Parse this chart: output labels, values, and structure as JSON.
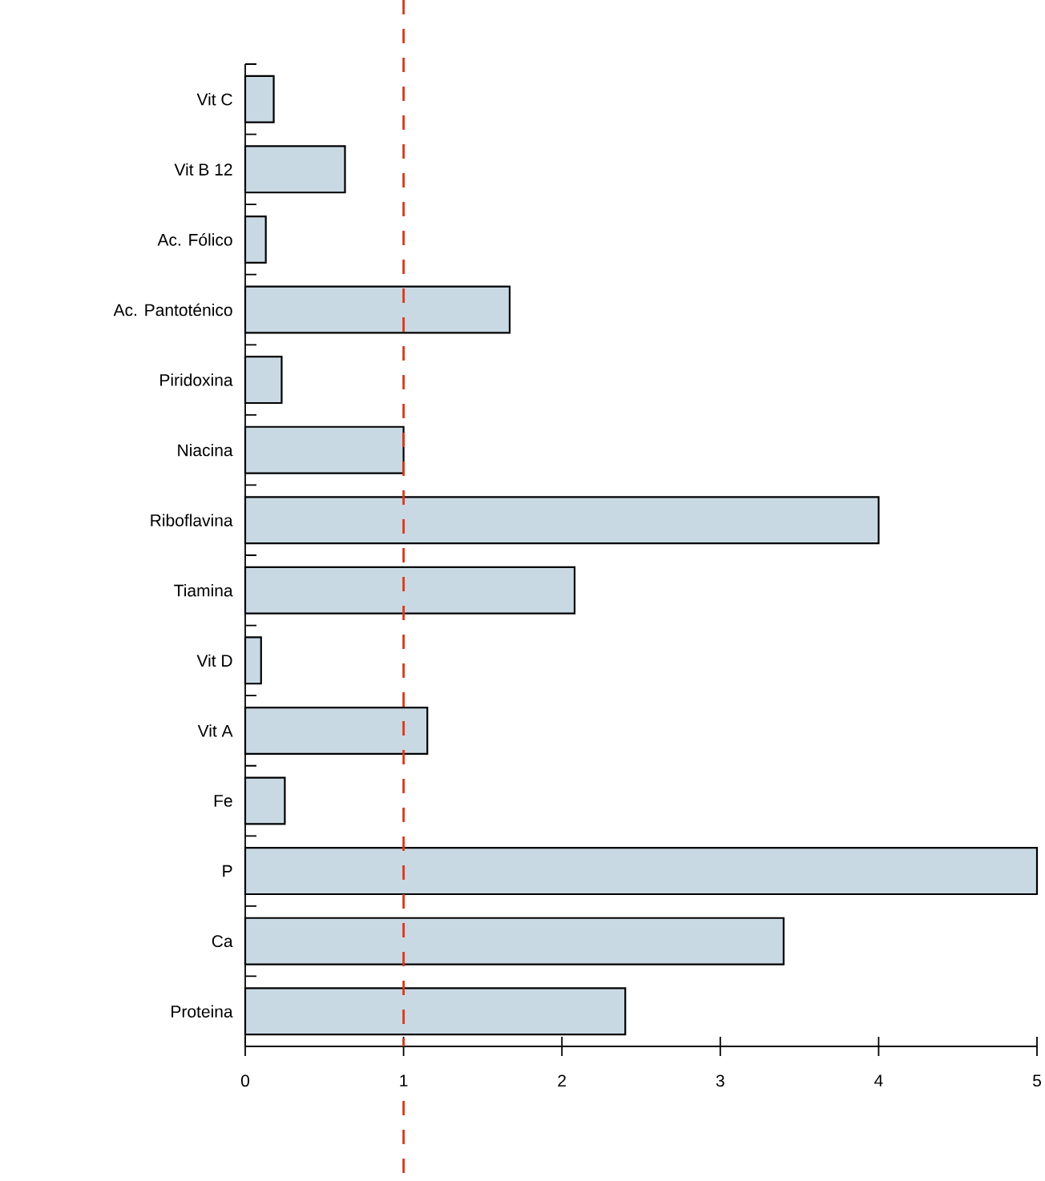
{
  "chart_data": {
    "type": "bar",
    "orientation": "horizontal",
    "categories": [
      "Vit C",
      "Vit B 12",
      "Ac. Fólico",
      "Ac. Pantoténico",
      "Piridoxina",
      "Niacina",
      "Riboflavina",
      "Tiamina",
      "Vit D",
      "Vit A",
      "Fe",
      "P",
      "Ca",
      "Proteina"
    ],
    "values": [
      0.18,
      0.63,
      0.13,
      1.67,
      0.23,
      1.0,
      4.0,
      2.08,
      0.1,
      1.15,
      0.25,
      5.0,
      3.4,
      2.4
    ],
    "color": "#c9d9e4",
    "xlim": [
      0,
      5
    ],
    "xticks": [
      0,
      1,
      2,
      3,
      4,
      5
    ],
    "grid": false,
    "ref_lines": [
      {
        "axis": "x",
        "value": 1,
        "color": "#d63a1e",
        "line_style": "dashed"
      }
    ]
  }
}
